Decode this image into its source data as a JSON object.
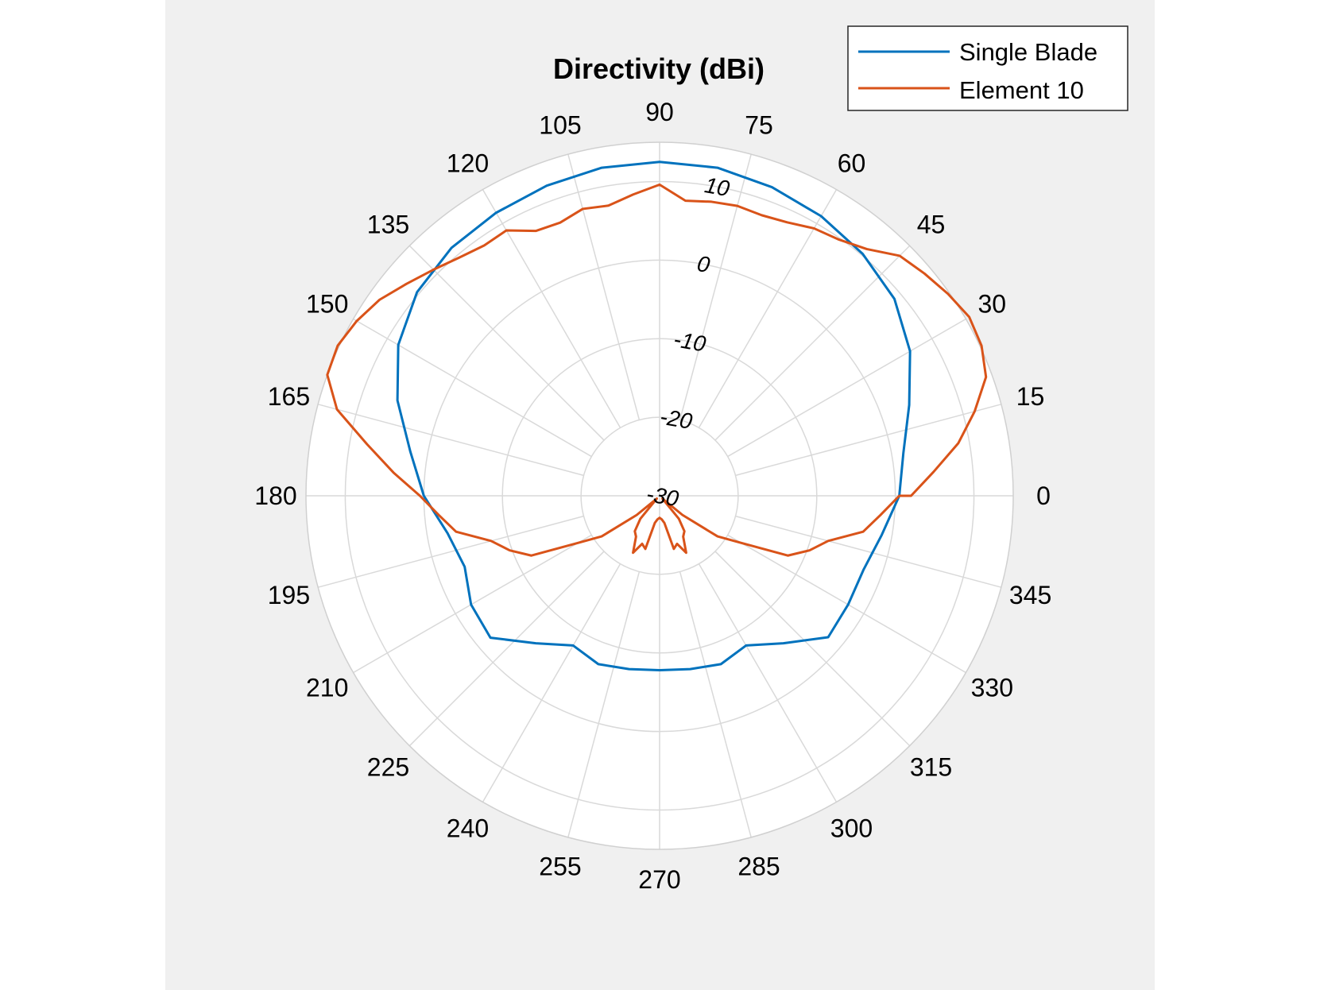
{
  "chart_data": {
    "type": "polar-line",
    "title": "Directivity (dBi)",
    "theta_unit": "deg",
    "theta_ticks": [
      "0",
      "15",
      "30",
      "45",
      "60",
      "75",
      "90",
      "105",
      "120",
      "135",
      "150",
      "165",
      "180",
      "195",
      "210",
      "225",
      "240",
      "255",
      "270",
      "285",
      "300",
      "315",
      "330",
      "345"
    ],
    "r_ticks": [
      "-30",
      "-20",
      "-10",
      "0",
      "10"
    ],
    "r_tick_label_angle_deg": 80,
    "r_lim": [
      -30,
      15
    ],
    "grid": true,
    "legend_position": "top-right",
    "series": [
      {
        "name": "Single Blade",
        "color": "#0072bd",
        "points": [
          [
            0,
            0.5
          ],
          [
            10,
            1.5
          ],
          [
            20,
            3.8
          ],
          [
            30,
            6.8
          ],
          [
            40,
            9.0
          ],
          [
            50,
            10.2
          ],
          [
            60,
            11.1
          ],
          [
            70,
            11.8
          ],
          [
            80,
            12.4
          ],
          [
            90,
            12.5
          ],
          [
            100,
            12.4
          ],
          [
            110,
            12.0
          ],
          [
            120,
            11.6
          ],
          [
            130,
            11.2
          ],
          [
            140,
            10.3
          ],
          [
            150,
            8.4
          ],
          [
            160,
            5.5
          ],
          [
            170,
            2.2
          ],
          [
            180,
            0.0
          ],
          [
            190,
            -2.6
          ],
          [
            200,
            -3.6
          ],
          [
            210,
            -2.3
          ],
          [
            220,
            -1.9
          ],
          [
            230,
            -5.5
          ],
          [
            240,
            -8.0
          ],
          [
            250,
            -7.2
          ],
          [
            260,
            -7.6
          ],
          [
            270,
            -7.8
          ],
          [
            280,
            -7.6
          ],
          [
            290,
            -7.2
          ],
          [
            300,
            -8.0
          ],
          [
            310,
            -5.5
          ],
          [
            320,
            -2.0
          ],
          [
            330,
            -2.3
          ],
          [
            340,
            -2.4
          ],
          [
            350,
            -1.3
          ]
        ]
      },
      {
        "name": "Element 10",
        "color": "#d95319",
        "points": [
          [
            0,
            2.0
          ],
          [
            5,
            5.0
          ],
          [
            10,
            8.6
          ],
          [
            15,
            11.5
          ],
          [
            20,
            14.2
          ],
          [
            25,
            15.2
          ],
          [
            30,
            15.5
          ],
          [
            35,
            14.8
          ],
          [
            40,
            14.0
          ],
          [
            45,
            13.2
          ],
          [
            50,
            11.0
          ],
          [
            55,
            9.8
          ],
          [
            60,
            9.3
          ],
          [
            65,
            8.4
          ],
          [
            70,
            8.0
          ],
          [
            75,
            8.2
          ],
          [
            80,
            8.0
          ],
          [
            85,
            7.7
          ],
          [
            90,
            9.6
          ],
          [
            95,
            8.5
          ],
          [
            100,
            7.5
          ],
          [
            105,
            7.8
          ],
          [
            110,
            7.0
          ],
          [
            115,
            7.2
          ],
          [
            120,
            9.0
          ],
          [
            125,
            8.9
          ],
          [
            130,
            9.6
          ],
          [
            135,
            10.7
          ],
          [
            140,
            12.0
          ],
          [
            145,
            13.5
          ],
          [
            150,
            14.5
          ],
          [
            155,
            15.2
          ],
          [
            160,
            15.0
          ],
          [
            165,
            12.5
          ],
          [
            170,
            7.8
          ],
          [
            175,
            4.0
          ],
          [
            180,
            0.5
          ],
          [
            185,
            -1.8
          ],
          [
            190,
            -3.7
          ],
          [
            195,
            -7.8
          ],
          [
            200,
            -9.7
          ],
          [
            205,
            -12.0
          ],
          [
            210,
            -18.0
          ],
          [
            215,
            -21.0
          ],
          [
            220,
            -26.2
          ],
          [
            225,
            -29.5
          ],
          [
            230,
            -26.2
          ],
          [
            235,
            -24.5
          ],
          [
            240,
            -24.0
          ],
          [
            245,
            -22.0
          ],
          [
            250,
            -23.5
          ],
          [
            255,
            -23.0
          ],
          [
            260,
            -26.5
          ],
          [
            265,
            -27.0
          ],
          [
            270,
            -27.2
          ],
          [
            275,
            -27.0
          ],
          [
            280,
            -26.5
          ],
          [
            285,
            -23.0
          ],
          [
            290,
            -23.5
          ],
          [
            295,
            -22.0
          ],
          [
            300,
            -24.0
          ],
          [
            305,
            -24.5
          ],
          [
            310,
            -26.2
          ],
          [
            315,
            -29.5
          ],
          [
            320,
            -26.2
          ],
          [
            325,
            -21.0
          ],
          [
            330,
            -18.0
          ],
          [
            335,
            -12.0
          ],
          [
            340,
            -9.7
          ],
          [
            345,
            -7.8
          ],
          [
            350,
            -3.7
          ],
          [
            355,
            -1.8
          ],
          [
            360,
            0.5
          ]
        ]
      }
    ]
  }
}
